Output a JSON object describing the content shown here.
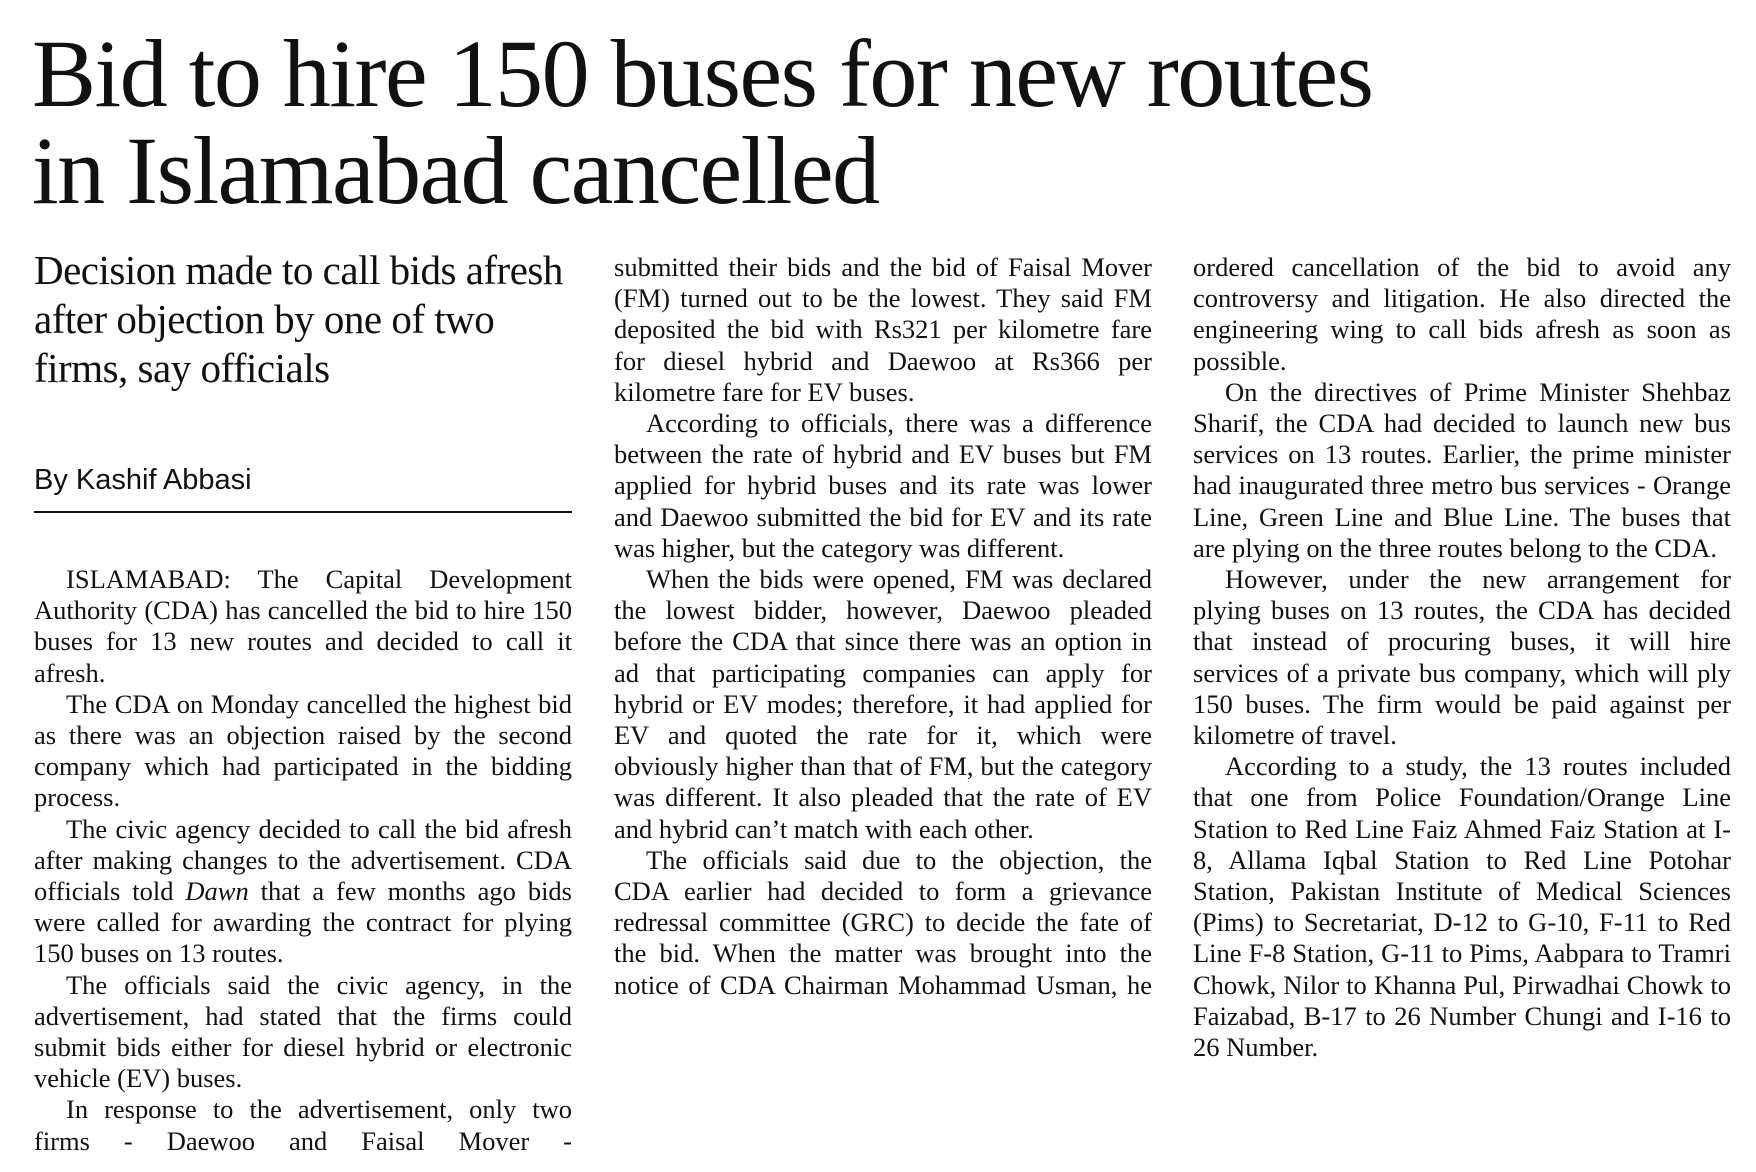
{
  "headline": [
    "Bid to hire 150 buses for new routes",
    "in Islamabad cancelled"
  ],
  "subheadline": "Decision made to call bids afresh after objection by one of two firms, say officials",
  "byline": "By Kashif Abbasi",
  "columns": [
    {
      "paragraphs": [
        "ISLAMABAD: The Capital Development Authority (CDA) has cancelled the bid to hire 150 buses for 13 new routes and decided to call it afresh.",
        "The CDA on Monday cancelled the highest bid as there was an objection raised by the second company which had participated in the bidding process.",
        [
          "The civic agency decided to call the bid afresh after making changes to the advertisement. CDA officials told ",
          "Dawn",
          " that a few months ago bids were called for awarding the contract for plying 150 buses on 13 routes."
        ],
        "The officials said the civic agency, in the advertisement, had stated that the firms could submit bids either for diesel hybrid or electronic vehicle (EV) buses.",
        "In response to the advertisement, only two firms - Daewoo and Faisal Mover -"
      ]
    },
    {
      "paragraphs": [
        "submitted their bids and the bid of Faisal Mover (FM) turned out to be the lowest. They said FM deposited the bid with Rs321 per kilometre fare for diesel hybrid and Daewoo at Rs366 per kilometre fare for EV buses.",
        "According to officials, there was a difference between the rate of hybrid and EV buses but FM applied for hybrid buses and its rate was lower and Daewoo submitted the bid for EV and its rate was higher, but the category was different.",
        "When the bids were opened, FM was declared the lowest bidder, however, Daewoo pleaded before the CDA that since there was an option in ad that participating companies can apply for hybrid or EV modes; therefore, it had applied for EV and quoted the rate for it, which were obviously higher than that of FM, but the category was different. It also pleaded that the rate of EV and hybrid can’t match with each other.",
        "The officials said due to the objection, the CDA earlier had decided to form a grievance redressal committee (GRC) to decide the fate of the bid. When the matter was brought into the notice of CDA Chairman Mohammad Usman, he"
      ]
    },
    {
      "paragraphs": [
        "ordered cancellation of the bid to avoid any controversy and litigation. He also directed the engineering wing to call bids afresh as soon as possible.",
        "On the directives of Prime Minister Shehbaz Sharif, the CDA had decided to launch new bus services on 13 routes. Earlier, the prime minister had inaugurated three metro bus services - Orange Line, Green Line and Blue Line. The buses that are plying on the three routes belong to the CDA.",
        "However, under the new arrangement for plying buses on 13 routes, the CDA has decided that instead of procuring buses, it will hire services of a private bus company, which will ply 150 buses. The firm would be paid against per kilometre of travel.",
        "According to a study, the 13 routes included that one from Police Foundation/Orange Line Station to Red Line Faiz Ahmed Faiz Station at I-8, Allama Iqbal Station to Red Line Potohar Station, Pakistan Institute of Medical Sciences (Pims) to Secretariat, D-12 to G-10, F-11 to Red Line F-8 Station, G-11 to Pims, Aabpara to Tramri Chowk, Nilor to Khanna Pul, Pirwadhai Chowk to Faizabad, B-17 to 26 Number Chungi and I-16 to 26 Number."
      ]
    }
  ]
}
